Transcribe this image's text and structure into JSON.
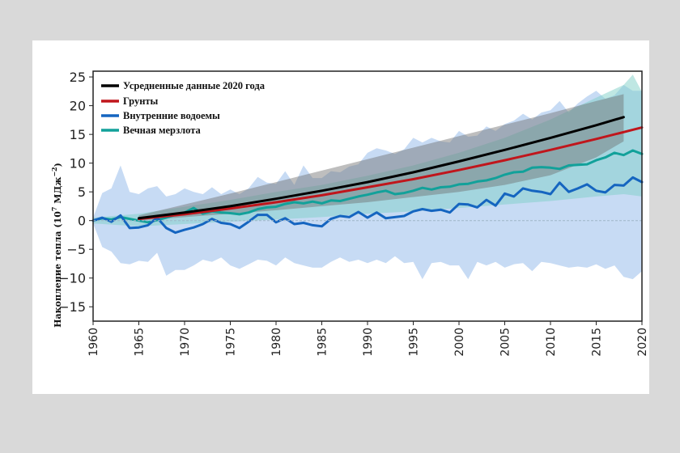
{
  "chart_data": {
    "type": "line",
    "title": "",
    "xlabel": "",
    "ylabel": "Накопление тепла (10",
    "ylabel_exp": "7",
    "ylabel_unit": " МДж",
    "ylabel_unit_exp": "−2",
    "ylabel_close": ")",
    "xlim": [
      1960,
      2020
    ],
    "ylim": [
      -17.5,
      26
    ],
    "x_ticks": [
      "1960",
      "1965",
      "1970",
      "1975",
      "1980",
      "1985",
      "1990",
      "1995",
      "2000",
      "2005",
      "2010",
      "2015",
      "2020"
    ],
    "y_ticks": [
      "25",
      "20",
      "15",
      "10",
      "5",
      "0",
      "−5",
      "−10",
      "−15"
    ],
    "y_tick_values": [
      25,
      20,
      15,
      10,
      5,
      0,
      -5,
      -10,
      -15
    ],
    "x_tick_values": [
      1960,
      1965,
      1970,
      1975,
      1980,
      1985,
      1990,
      1995,
      2000,
      2005,
      2010,
      2015,
      2020
    ],
    "legend": {
      "position": "top-left",
      "entries": [
        {
          "label": "Усредненные данные 2020 года",
          "color": "#000000"
        },
        {
          "label": "Грунты",
          "color": "#c0161c"
        },
        {
          "label": "Внутренние водоемы",
          "color": "#1565c0"
        },
        {
          "label": "Вечная мерзлота",
          "color": "#12a19a"
        }
      ]
    },
    "series": [
      {
        "name": "Усредненные данные 2020 года",
        "color": "#000000",
        "x": [
          1965,
          1970,
          1975,
          1980,
          1985,
          1990,
          1995,
          2000,
          2005,
          2010,
          2015,
          2018
        ],
        "values": [
          0.4,
          1.4,
          2.5,
          3.8,
          5.2,
          6.7,
          8.4,
          10.3,
          12.3,
          14.4,
          16.6,
          18.0
        ]
      },
      {
        "name": "Грунты",
        "color": "#c0161c",
        "x": [
          1965,
          1970,
          1975,
          1980,
          1985,
          1990,
          1995,
          2000,
          2005,
          2010,
          2015,
          2020
        ],
        "values": [
          0.3,
          1.1,
          2.1,
          3.2,
          4.4,
          5.8,
          7.2,
          8.8,
          10.5,
          12.3,
          14.2,
          16.2
        ]
      },
      {
        "name": "Внутренние водоемы",
        "color": "#1565c0",
        "x": [
          1960,
          1961,
          1962,
          1963,
          1964,
          1965,
          1966,
          1967,
          1968,
          1969,
          1970,
          1971,
          1972,
          1973,
          1974,
          1975,
          1976,
          1977,
          1978,
          1979,
          1980,
          1981,
          1982,
          1983,
          1984,
          1985,
          1986,
          1987,
          1988,
          1989,
          1990,
          1991,
          1992,
          1993,
          1994,
          1995,
          1996,
          1997,
          1998,
          1999,
          2000,
          2001,
          2002,
          2003,
          2004,
          2005,
          2006,
          2007,
          2008,
          2009,
          2010,
          2011,
          2012,
          2013,
          2014,
          2015,
          2016,
          2017,
          2018,
          2019,
          2020
        ],
        "values": [
          0.0,
          0.5,
          -0.2,
          0.9,
          -1.3,
          -1.2,
          -0.8,
          0.5,
          -1.3,
          -2.1,
          -1.6,
          -1.2,
          -0.6,
          0.3,
          -0.4,
          -0.6,
          -1.3,
          -0.2,
          1.0,
          1.0,
          -0.3,
          0.4,
          -0.6,
          -0.4,
          -0.8,
          -1.0,
          0.3,
          0.8,
          0.6,
          1.5,
          0.5,
          1.4,
          0.4,
          0.6,
          0.8,
          1.6,
          2.0,
          1.7,
          1.9,
          1.4,
          2.9,
          2.8,
          2.3,
          3.6,
          2.6,
          4.7,
          4.2,
          5.6,
          5.2,
          5.0,
          4.6,
          6.6,
          5.0,
          5.6,
          6.3,
          5.2,
          4.9,
          6.2,
          6.1,
          7.5,
          6.7
        ]
      },
      {
        "name": "Вечная мерзлота",
        "color": "#12a19a",
        "x": [
          1960,
          1961,
          1962,
          1963,
          1964,
          1965,
          1966,
          1967,
          1968,
          1969,
          1970,
          1971,
          1972,
          1973,
          1974,
          1975,
          1976,
          1977,
          1978,
          1979,
          1980,
          1981,
          1982,
          1983,
          1984,
          1985,
          1986,
          1987,
          1988,
          1989,
          1990,
          1991,
          1992,
          1993,
          1994,
          1995,
          1996,
          1997,
          1998,
          1999,
          2000,
          2001,
          2002,
          2003,
          2004,
          2005,
          2006,
          2007,
          2008,
          2009,
          2010,
          2011,
          2012,
          2013,
          2014,
          2015,
          2016,
          2017,
          2018,
          2019,
          2020
        ],
        "values": [
          0.0,
          0.4,
          0.2,
          0.6,
          0.3,
          0.0,
          -0.3,
          0.1,
          0.5,
          1.0,
          1.4,
          2.2,
          1.2,
          1.6,
          1.4,
          1.3,
          1.1,
          1.4,
          2.0,
          2.3,
          2.4,
          2.9,
          3.2,
          3.0,
          3.3,
          3.0,
          3.5,
          3.4,
          3.8,
          4.2,
          4.5,
          4.9,
          5.2,
          4.6,
          4.8,
          5.2,
          5.7,
          5.4,
          5.8,
          5.9,
          6.3,
          6.4,
          6.8,
          7.0,
          7.4,
          8.0,
          8.4,
          8.5,
          9.2,
          9.3,
          9.2,
          9.0,
          9.6,
          9.7,
          9.8,
          10.5,
          11.0,
          11.8,
          11.4,
          12.2,
          11.6
        ]
      }
    ],
    "bands": [
      {
        "name": "Внутренние водоемы (разброс)",
        "color": "#a9c8ee",
        "x": [
          1960,
          1961,
          1962,
          1963,
          1964,
          1965,
          1966,
          1967,
          1968,
          1969,
          1970,
          1971,
          1972,
          1973,
          1974,
          1975,
          1976,
          1977,
          1978,
          1979,
          1980,
          1981,
          1982,
          1983,
          1984,
          1985,
          1986,
          1987,
          1988,
          1989,
          1990,
          1991,
          1992,
          1993,
          1994,
          1995,
          1996,
          1997,
          1998,
          1999,
          2000,
          2001,
          2002,
          2003,
          2004,
          2005,
          2006,
          2007,
          2008,
          2009,
          2010,
          2011,
          2012,
          2013,
          2014,
          2015,
          2016,
          2017,
          2018,
          2019,
          2020
        ],
        "upper": [
          0.5,
          4.8,
          5.6,
          9.6,
          5.0,
          4.6,
          5.6,
          6.0,
          4.2,
          4.6,
          5.6,
          5.0,
          4.6,
          5.8,
          4.6,
          5.4,
          4.6,
          5.6,
          7.6,
          6.6,
          6.4,
          8.6,
          6.2,
          9.6,
          7.4,
          7.4,
          8.6,
          8.4,
          9.4,
          9.8,
          11.8,
          12.6,
          12.2,
          11.6,
          12.4,
          14.4,
          13.6,
          14.4,
          13.8,
          13.6,
          15.6,
          14.6,
          14.8,
          16.4,
          15.6,
          16.8,
          17.4,
          18.6,
          17.6,
          18.8,
          19.2,
          20.8,
          18.8,
          20.4,
          21.6,
          22.6,
          21.2,
          21.8,
          23.6,
          22.6,
          22.6
        ],
        "lower": [
          -0.5,
          -4.6,
          -5.4,
          -7.4,
          -7.6,
          -7.0,
          -7.2,
          -5.6,
          -9.6,
          -8.6,
          -8.6,
          -7.8,
          -6.8,
          -7.2,
          -6.4,
          -7.8,
          -8.4,
          -7.6,
          -6.8,
          -7.0,
          -7.8,
          -6.4,
          -7.4,
          -7.8,
          -8.2,
          -8.2,
          -7.2,
          -6.4,
          -7.2,
          -6.8,
          -7.4,
          -6.8,
          -7.4,
          -6.2,
          -7.4,
          -7.2,
          -10.2,
          -7.4,
          -7.2,
          -7.8,
          -7.8,
          -10.2,
          -7.2,
          -7.8,
          -7.2,
          -8.2,
          -7.6,
          -7.4,
          -8.8,
          -7.2,
          -7.4,
          -7.8,
          -8.2,
          -8.0,
          -8.2,
          -7.6,
          -8.4,
          -7.8,
          -9.8,
          -10.2,
          -8.8
        ]
      },
      {
        "name": "Вечная мерзлота (разброс)",
        "color": "#7fd0c8",
        "x": [
          1960,
          1965,
          1970,
          1975,
          1980,
          1985,
          1990,
          1995,
          2000,
          2005,
          2010,
          2015,
          2018,
          2019,
          2020
        ],
        "upper": [
          0.5,
          1.2,
          2.4,
          3.6,
          5.0,
          6.2,
          7.8,
          9.6,
          11.8,
          14.4,
          17.6,
          21.4,
          23.6,
          25.4,
          22.4
        ],
        "lower": [
          -0.5,
          -1.0,
          -0.6,
          -0.2,
          0.2,
          0.6,
          1.2,
          1.6,
          2.2,
          2.8,
          3.4,
          4.2,
          4.6,
          4.4,
          4.2
        ]
      },
      {
        "name": "Усредненные данные 2020 года (разброс)",
        "color": "#6f6f6f",
        "x": [
          1965,
          1970,
          1975,
          1980,
          1985,
          1990,
          1995,
          2000,
          2005,
          2010,
          2015,
          2018
        ],
        "upper": [
          0.9,
          2.8,
          4.7,
          6.7,
          8.7,
          10.7,
          12.7,
          14.7,
          16.7,
          18.7,
          20.8,
          22.0
        ],
        "lower": [
          0.0,
          0.6,
          1.2,
          1.8,
          2.5,
          3.2,
          4.1,
          5.0,
          6.2,
          7.9,
          11.0,
          13.8
        ]
      }
    ]
  }
}
